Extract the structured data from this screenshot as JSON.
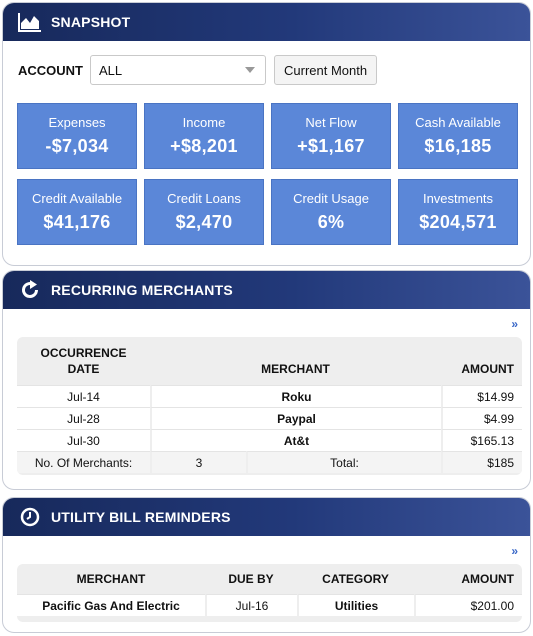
{
  "snapshot": {
    "title": "SNAPSHOT",
    "icon": "area-chart-icon",
    "account_label": "ACCOUNT",
    "account_value": "ALL",
    "period_button": "Current Month",
    "tiles": [
      {
        "label": "Expenses",
        "value": "-$7,034"
      },
      {
        "label": "Income",
        "value": "+$8,201"
      },
      {
        "label": "Net Flow",
        "value": "+$1,167"
      },
      {
        "label": "Cash Available",
        "value": "$16,185"
      },
      {
        "label": "Credit Available",
        "value": "$41,176"
      },
      {
        "label": "Credit Loans",
        "value": "$2,470"
      },
      {
        "label": "Credit Usage",
        "value": "6%"
      },
      {
        "label": "Investments",
        "value": "$204,571"
      }
    ],
    "tile_color": "#5b87d8"
  },
  "recurring": {
    "title": "RECURRING MERCHANTS",
    "icon": "refresh-icon",
    "more": "»",
    "headers": {
      "occurrence_date": "OCCURRENCE DATE",
      "merchant": "MERCHANT",
      "amount": "AMOUNT"
    },
    "rows": [
      {
        "date": "Jul-14",
        "merchant": "Roku",
        "amount": "$14.99"
      },
      {
        "date": "Jul-28",
        "merchant": "Paypal",
        "amount": "$4.99"
      },
      {
        "date": "Jul-30",
        "merchant": "At&t",
        "amount": "$165.13"
      }
    ],
    "summary": {
      "count_label": "No. Of Merchants:",
      "count": "3",
      "total_label": "Total:",
      "total": "$185"
    }
  },
  "utility": {
    "title": "UTILITY BILL REMINDERS",
    "icon": "clock-icon",
    "more": "»",
    "headers": {
      "merchant": "MERCHANT",
      "due_by": "DUE BY",
      "category": "CATEGORY",
      "amount": "AMOUNT"
    },
    "rows": [
      {
        "merchant": "Pacific Gas And Electric",
        "due_by": "Jul-16",
        "category": "Utilities",
        "amount": "$201.00"
      }
    ]
  },
  "colors": {
    "header_dark": "#17295b",
    "header_light": "#3b5399",
    "link": "#3a68c8"
  }
}
